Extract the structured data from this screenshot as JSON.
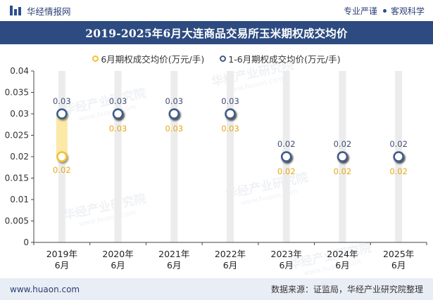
{
  "header": {
    "brand_name": "华经情报网",
    "slogan_left": "专业严谨",
    "slogan_right": "客观科学"
  },
  "chart_data": {
    "type": "line",
    "title": "2019-2025年6月大连商品交易所玉米期权成交均价",
    "categories": [
      "2019年\n6月",
      "2020年\n6月",
      "2021年\n6月",
      "2022年\n6月",
      "2023年\n6月",
      "2024年\n6月",
      "2025年\n6月"
    ],
    "series": [
      {
        "name": "6月期权成交均价(万元/手)",
        "values": [
          0.02,
          0.03,
          0.03,
          0.03,
          0.02,
          0.02,
          0.02
        ],
        "labels": [
          "0.02",
          "0.03",
          "0.03",
          "0.03",
          "0.02",
          "0.02",
          "0.02"
        ],
        "color": "#f5c12e"
      },
      {
        "name": "1-6月期权成交均价(万元/手)",
        "values": [
          0.03,
          0.03,
          0.03,
          0.03,
          0.02,
          0.02,
          0.02
        ],
        "labels": [
          "0.03",
          "0.03",
          "0.03",
          "0.03",
          "0.02",
          "0.02",
          "0.02"
        ],
        "color": "#3d5a8c"
      }
    ],
    "ylim": [
      0,
      0.04
    ],
    "yticks": [
      0,
      0.005,
      0.01,
      0.015,
      0.02,
      0.025,
      0.03,
      0.035,
      0.04
    ],
    "ytick_labels": [
      "0",
      "0.005",
      "0.01",
      "0.015",
      "0.02",
      "0.025",
      "0.03",
      "0.035",
      "0.04"
    ],
    "grid": false,
    "legend_position": "top-center",
    "xlabel": "",
    "ylabel": ""
  },
  "footer": {
    "url": "www.huaon.com",
    "source": "数据来源：证监局，华经产业研究院整理"
  }
}
